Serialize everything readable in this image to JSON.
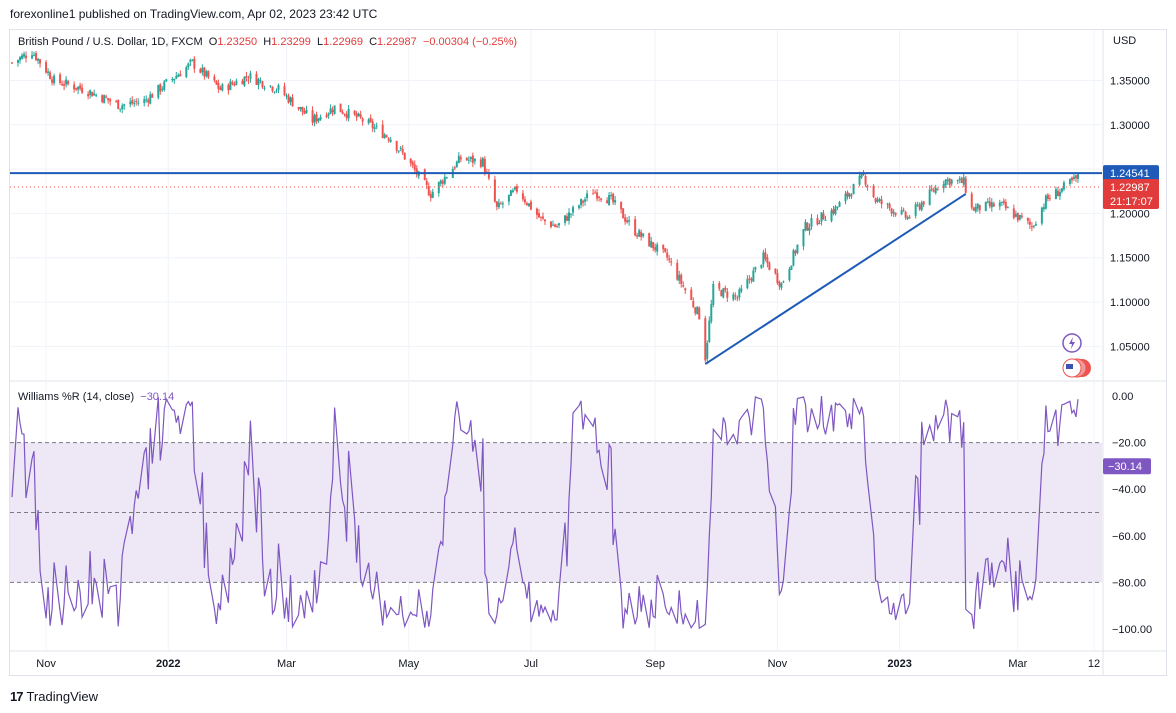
{
  "header": {
    "publisher_line": "forexonline1 published on TradingView.com, Apr 02, 2023 23:42 UTC"
  },
  "legend": {
    "symbol": "British Pound / U.S. Dollar, 1D, FXCM",
    "open_label": "O",
    "open": "1.23250",
    "high_label": "H",
    "high": "1.23299",
    "low_label": "L",
    "low": "1.22969",
    "close_label": "C",
    "close": "1.22987",
    "change": "−0.00304 (−0.25%)"
  },
  "indicator_legend": {
    "name": "Williams %R (14, close)",
    "value": "−30.14"
  },
  "footer": {
    "logo": "17",
    "brand": "TradingView"
  },
  "colors": {
    "up": "#26a69a",
    "down": "#ef5350",
    "hline": "#1e5bb8",
    "price_badge": "#e23b3b",
    "level_badge": "#1e5bb8",
    "wr_line": "#7e57c2",
    "wr_band": "#ede7f6"
  },
  "icons": [
    "lightning-icon",
    "us-flag-icon"
  ],
  "chart_data": [
    {
      "type": "candlestick",
      "currency_label": "USD",
      "x_tick_labels": [
        "Nov",
        "2022",
        "Mar",
        "May",
        "Jul",
        "Sep",
        "Nov",
        "2023",
        "Mar",
        "12"
      ],
      "y_ticks": [
        1.05,
        1.1,
        1.15,
        1.2,
        1.25,
        1.3,
        1.35
      ],
      "y_tick_labels": [
        "1.05000",
        "1.10000",
        "1.15000",
        "1.20000",
        "1.25000",
        "1.30000",
        "1.35000"
      ],
      "ylim": [
        1.012,
        1.407
      ],
      "horizontal_level": {
        "value": 1.24541,
        "label": "1.24541"
      },
      "last_price": {
        "value": 1.22987,
        "label": "1.22987",
        "countdown": "21:17:07"
      },
      "trendline": {
        "from": {
          "date": "2022-09-26",
          "value": 1.03
        },
        "to": {
          "date": "2023-02-03",
          "value": 1.222
        }
      },
      "close_path": [
        [
          "2021-10-15",
          1.37
        ],
        [
          "2021-10-25",
          1.383
        ],
        [
          "2021-11-05",
          1.35
        ],
        [
          "2021-11-20",
          1.34
        ],
        [
          "2021-12-08",
          1.322
        ],
        [
          "2021-12-20",
          1.327
        ],
        [
          "2022-01-13",
          1.37
        ],
        [
          "2022-01-27",
          1.34
        ],
        [
          "2022-02-10",
          1.355
        ],
        [
          "2022-02-25",
          1.34
        ],
        [
          "2022-03-14",
          1.305
        ],
        [
          "2022-03-25",
          1.32
        ],
        [
          "2022-04-08",
          1.305
        ],
        [
          "2022-04-22",
          1.285
        ],
        [
          "2022-05-02",
          1.255
        ],
        [
          "2022-05-12",
          1.222
        ],
        [
          "2022-05-27",
          1.262
        ],
        [
          "2022-06-07",
          1.258
        ],
        [
          "2022-06-14",
          1.205
        ],
        [
          "2022-06-24",
          1.227
        ],
        [
          "2022-07-06",
          1.193
        ],
        [
          "2022-07-14",
          1.185
        ],
        [
          "2022-08-01",
          1.225
        ],
        [
          "2022-08-10",
          1.215
        ],
        [
          "2022-08-22",
          1.18
        ],
        [
          "2022-09-07",
          1.15
        ],
        [
          "2022-09-23",
          1.085
        ],
        [
          "2022-09-26",
          1.038
        ],
        [
          "2022-09-30",
          1.115
        ],
        [
          "2022-10-12",
          1.105
        ],
        [
          "2022-10-25",
          1.15
        ],
        [
          "2022-11-03",
          1.12
        ],
        [
          "2022-11-15",
          1.185
        ],
        [
          "2022-11-30",
          1.205
        ],
        [
          "2022-12-14",
          1.242
        ],
        [
          "2022-12-20",
          1.215
        ],
        [
          "2023-01-05",
          1.195
        ],
        [
          "2023-01-23",
          1.238
        ],
        [
          "2023-02-02",
          1.235
        ],
        [
          "2023-02-06",
          1.205
        ],
        [
          "2023-02-20",
          1.21
        ],
        [
          "2023-03-08",
          1.185
        ],
        [
          "2023-03-15",
          1.215
        ],
        [
          "2023-03-31",
          1.24
        ],
        [
          "2023-04-02",
          1.22987
        ]
      ]
    },
    {
      "type": "line",
      "name": "Williams %R (14, close)",
      "y_ticks": [
        0,
        -20,
        -40,
        -60,
        -80,
        -100
      ],
      "y_tick_labels": [
        "0.00",
        "−20.00",
        "−40.00",
        "−60.00",
        "−80.00",
        "−100.00"
      ],
      "ylim": [
        -109,
        6
      ],
      "band": [
        -20,
        -80
      ],
      "midline": -50,
      "last_value": {
        "value": -30.14,
        "label": "−30.14"
      }
    }
  ]
}
